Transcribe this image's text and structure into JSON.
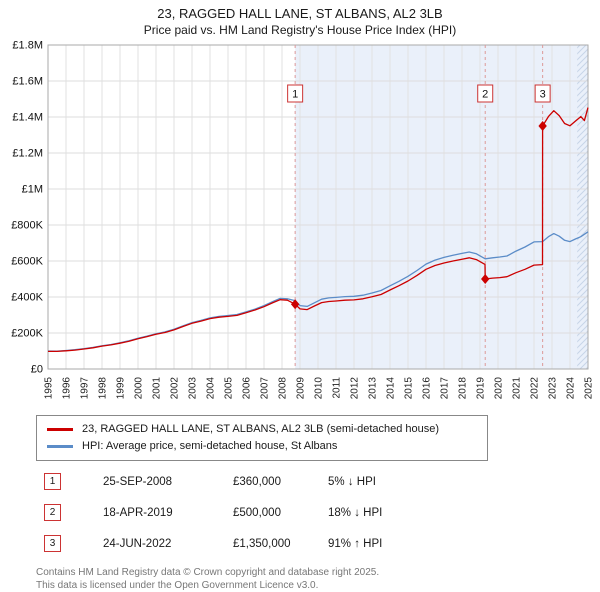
{
  "title": "23, RAGGED HALL LANE, ST ALBANS, AL2 3LB",
  "subtitle": "Price paid vs. HM Land Registry's House Price Index (HPI)",
  "chart_data": {
    "type": "line",
    "x_range": [
      1995,
      2025
    ],
    "y_range": [
      0,
      1800000
    ],
    "grid": true,
    "legend_position": "below",
    "y_ticks": [
      [
        0,
        "£0"
      ],
      [
        200000,
        "£200K"
      ],
      [
        400000,
        "£400K"
      ],
      [
        600000,
        "£600K"
      ],
      [
        800000,
        "£800K"
      ],
      [
        1000000,
        "£1M"
      ],
      [
        1200000,
        "£1.2M"
      ],
      [
        1400000,
        "£1.4M"
      ],
      [
        1600000,
        "£1.6M"
      ],
      [
        1800000,
        "£1.8M"
      ]
    ],
    "x_ticks": [
      1995,
      1996,
      1997,
      1998,
      1999,
      2000,
      2001,
      2002,
      2003,
      2004,
      2005,
      2006,
      2007,
      2008,
      2009,
      2010,
      2011,
      2012,
      2013,
      2014,
      2015,
      2016,
      2017,
      2018,
      2019,
      2020,
      2021,
      2022,
      2023,
      2024,
      2025
    ],
    "shaded_region": {
      "start": 2008.73,
      "end": 2025
    },
    "hatched_region": {
      "start": 2024.4,
      "end": 2025
    },
    "colors": {
      "property": "#cc0000",
      "hpi": "#5b8cc8",
      "dashed": "#dd9999",
      "grid": "#e2e2e2",
      "shade": "#eaf0fa"
    },
    "series": [
      {
        "name": "23, RAGGED HALL LANE, ST ALBANS, AL2 3LB (semi-detached house)",
        "color": "#cc0000",
        "points": [
          [
            1995.0,
            98000
          ],
          [
            1995.5,
            97500
          ],
          [
            1996,
            101000
          ],
          [
            1996.5,
            105000
          ],
          [
            1997,
            111000
          ],
          [
            1997.5,
            118000
          ],
          [
            1998,
            127000
          ],
          [
            1998.5,
            134000
          ],
          [
            1999,
            143500
          ],
          [
            1999.5,
            154000
          ],
          [
            2000,
            168000
          ],
          [
            2000.5,
            180000
          ],
          [
            2001,
            193000
          ],
          [
            2001.5,
            203000
          ],
          [
            2002,
            217000
          ],
          [
            2002.5,
            236000
          ],
          [
            2003,
            254000
          ],
          [
            2003.5,
            266000
          ],
          [
            2004,
            280000
          ],
          [
            2004.5,
            288000
          ],
          [
            2005,
            292000
          ],
          [
            2005.5,
            298000
          ],
          [
            2006,
            312000
          ],
          [
            2006.5,
            328000
          ],
          [
            2007,
            346000
          ],
          [
            2007.5,
            369000
          ],
          [
            2007.9,
            385000
          ],
          [
            2008.3,
            382000
          ],
          [
            2008.73,
            360000
          ],
          [
            2009.0,
            334000
          ],
          [
            2009.4,
            330000
          ],
          [
            2009.8,
            350000
          ],
          [
            2010.2,
            369000
          ],
          [
            2010.6,
            375000
          ],
          [
            2011,
            378000
          ],
          [
            2011.5,
            382000
          ],
          [
            2012,
            384000
          ],
          [
            2012.5,
            390000
          ],
          [
            2013,
            401000
          ],
          [
            2013.5,
            414000
          ],
          [
            2014,
            439000
          ],
          [
            2014.5,
            463000
          ],
          [
            2015,
            489000
          ],
          [
            2015.5,
            520000
          ],
          [
            2016,
            554000
          ],
          [
            2016.5,
            575000
          ],
          [
            2017,
            589000
          ],
          [
            2017.5,
            600000
          ],
          [
            2018,
            610000
          ],
          [
            2018.4,
            618000
          ],
          [
            2018.8,
            608000
          ],
          [
            2019.28,
            581000
          ],
          [
            2019.29,
            500000
          ],
          [
            2019.7,
            505000
          ],
          [
            2020.1,
            508000
          ],
          [
            2020.5,
            513000
          ],
          [
            2021,
            535000
          ],
          [
            2021.5,
            554000
          ],
          [
            2022,
            577000
          ],
          [
            2022.47,
            580000
          ],
          [
            2022.48,
            1350000
          ],
          [
            2022.8,
            1402000
          ],
          [
            2023.1,
            1435000
          ],
          [
            2023.4,
            1408000
          ],
          [
            2023.7,
            1364000
          ],
          [
            2024,
            1351000
          ],
          [
            2024.3,
            1377000
          ],
          [
            2024.6,
            1402000
          ],
          [
            2024.8,
            1380000
          ],
          [
            2025,
            1452000
          ]
        ]
      },
      {
        "name": "HPI: Average price, semi-detached house, St Albans",
        "color": "#5b8cc8",
        "points": [
          [
            1995.0,
            100000
          ],
          [
            1995.5,
            99500
          ],
          [
            1996,
            103000
          ],
          [
            1996.5,
            107000
          ],
          [
            1997,
            113000
          ],
          [
            1997.5,
            120000
          ],
          [
            1998,
            129000
          ],
          [
            1998.5,
            136000
          ],
          [
            1999,
            146000
          ],
          [
            1999.5,
            157000
          ],
          [
            2000,
            171000
          ],
          [
            2000.5,
            183000
          ],
          [
            2001,
            196000
          ],
          [
            2001.5,
            206000
          ],
          [
            2002,
            221000
          ],
          [
            2002.5,
            240000
          ],
          [
            2003,
            258000
          ],
          [
            2003.5,
            270000
          ],
          [
            2004,
            284000
          ],
          [
            2004.5,
            292000
          ],
          [
            2005,
            297000
          ],
          [
            2005.5,
            303000
          ],
          [
            2006,
            317000
          ],
          [
            2006.5,
            333000
          ],
          [
            2007,
            352000
          ],
          [
            2007.5,
            375000
          ],
          [
            2007.9,
            392000
          ],
          [
            2008.3,
            390000
          ],
          [
            2008.73,
            380000
          ],
          [
            2009.0,
            352000
          ],
          [
            2009.4,
            348000
          ],
          [
            2009.8,
            368000
          ],
          [
            2010.2,
            388000
          ],
          [
            2010.6,
            395000
          ],
          [
            2011,
            398000
          ],
          [
            2011.5,
            402000
          ],
          [
            2012,
            404000
          ],
          [
            2012.5,
            410000
          ],
          [
            2013,
            422000
          ],
          [
            2013.5,
            436000
          ],
          [
            2014,
            462000
          ],
          [
            2014.5,
            487000
          ],
          [
            2015,
            515000
          ],
          [
            2015.5,
            547000
          ],
          [
            2016,
            583000
          ],
          [
            2016.5,
            605000
          ],
          [
            2017,
            620000
          ],
          [
            2017.5,
            632000
          ],
          [
            2018,
            642000
          ],
          [
            2018.4,
            650000
          ],
          [
            2018.8,
            640000
          ],
          [
            2019.29,
            612000
          ],
          [
            2019.7,
            618000
          ],
          [
            2020.1,
            622000
          ],
          [
            2020.5,
            628000
          ],
          [
            2021,
            655000
          ],
          [
            2021.5,
            678000
          ],
          [
            2022,
            706000
          ],
          [
            2022.48,
            708000
          ],
          [
            2022.8,
            735000
          ],
          [
            2023.1,
            752000
          ],
          [
            2023.4,
            738000
          ],
          [
            2023.7,
            715000
          ],
          [
            2024,
            708000
          ],
          [
            2024.3,
            722000
          ],
          [
            2024.6,
            735000
          ],
          [
            2025,
            762000
          ]
        ]
      }
    ],
    "sales": [
      {
        "n": "1",
        "x": 2008.73,
        "y": 360000
      },
      {
        "n": "2",
        "x": 2019.29,
        "y": 500000
      },
      {
        "n": "3",
        "x": 2022.48,
        "y": 1350000
      }
    ]
  },
  "legend": {
    "items": [
      {
        "label": "23, RAGGED HALL LANE, ST ALBANS, AL2 3LB (semi-detached house)",
        "color": "#cc0000"
      },
      {
        "label": "HPI: Average price, semi-detached house, St Albans",
        "color": "#5b8cc8"
      }
    ]
  },
  "transactions": [
    {
      "num": "1",
      "date": "25-SEP-2008",
      "price": "£360,000",
      "delta": "5% ↓ HPI"
    },
    {
      "num": "2",
      "date": "18-APR-2019",
      "price": "£500,000",
      "delta": "18% ↓ HPI"
    },
    {
      "num": "3",
      "date": "24-JUN-2022",
      "price": "£1,350,000",
      "delta": "91% ↑ HPI"
    }
  ],
  "footer": {
    "line1": "Contains HM Land Registry data © Crown copyright and database right 2025.",
    "line2": "This data is licensed under the Open Government Licence v3.0."
  }
}
